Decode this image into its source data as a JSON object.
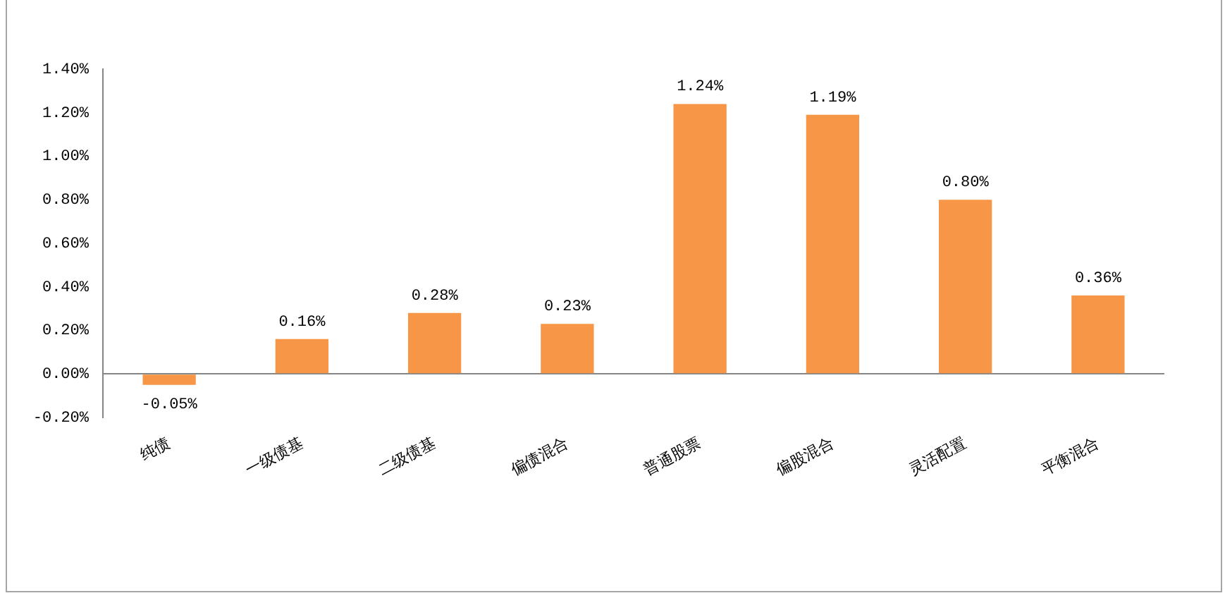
{
  "chart_data": {
    "type": "bar",
    "categories": [
      "纯债",
      "一级债基",
      "二级债基",
      "偏债混合",
      "普通股票",
      "偏股混合",
      "灵活配置",
      "平衡混合"
    ],
    "values": [
      -0.05,
      0.16,
      0.28,
      0.23,
      1.24,
      1.19,
      0.8,
      0.36
    ],
    "color": "#f79646",
    "value_labels": [
      "-0.05%",
      "0.16%",
      "0.28%",
      "0.23%",
      "1.24%",
      "1.19%",
      "0.80%",
      "0.36%"
    ],
    "ylim": [
      -0.2,
      1.4
    ],
    "yticks": [
      {
        "value": -0.2,
        "label": "-0.20%"
      },
      {
        "value": 0,
        "label": "0.00%"
      },
      {
        "value": 0.2,
        "label": "0.20%"
      },
      {
        "value": 0.4,
        "label": "0.40%"
      },
      {
        "value": 0.6,
        "label": "0.60%"
      },
      {
        "value": 0.8,
        "label": "0.80%"
      },
      {
        "value": 1.0,
        "label": "1.00%"
      },
      {
        "value": 1.2,
        "label": "1.20%"
      },
      {
        "value": 1.4,
        "label": "1.40%"
      }
    ]
  }
}
